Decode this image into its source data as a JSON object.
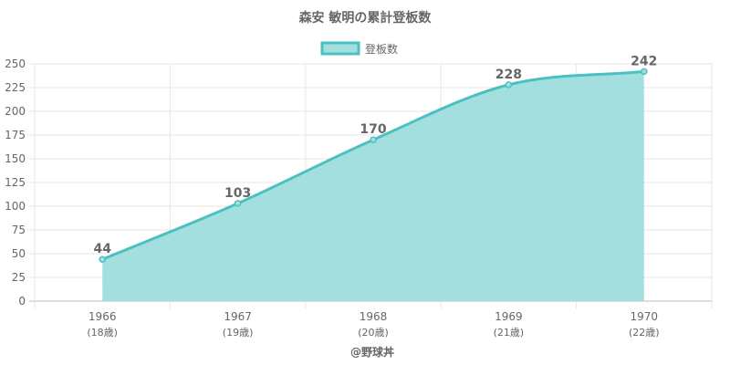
{
  "chart_data": {
    "type": "area",
    "title": "森安 敏明の累計登板数",
    "categories": [
      "1966",
      "1967",
      "1968",
      "1969",
      "1970"
    ],
    "category_sublabels": [
      "(18歳)",
      "(19歳)",
      "(20歳)",
      "(21歳)",
      "(22歳)"
    ],
    "series": [
      {
        "name": "登板数",
        "values": [
          44,
          103,
          170,
          228,
          242
        ]
      }
    ],
    "ylim": [
      0,
      250
    ],
    "y_ticks": [
      0,
      25,
      50,
      75,
      100,
      125,
      150,
      175,
      200,
      225,
      250
    ],
    "grid": true,
    "legend_position": "top",
    "colors": {
      "line": "#4bc0c0",
      "fill": "#a4dfdf"
    },
    "footer": "@野球丼"
  }
}
